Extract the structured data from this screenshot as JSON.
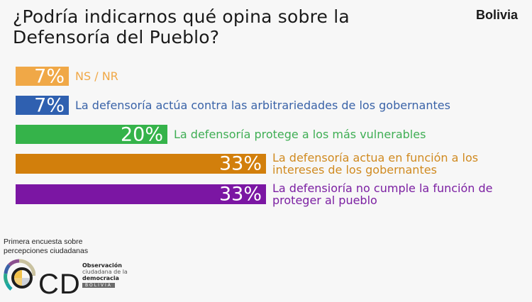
{
  "header": {
    "title_line1": "¿Podría indicarnos qué opina sobre la",
    "title_line2": "Defensoría del Pueblo?",
    "country": "Bolivia"
  },
  "chart_data": {
    "type": "bar",
    "orientation": "horizontal",
    "title": "¿Podría indicarnos qué opina sobre la Defensoría del Pueblo?",
    "xlabel": "",
    "ylabel": "",
    "xlim": [
      0,
      33
    ],
    "grid": false,
    "legend": "none",
    "categories": [
      "NS / NR",
      "La defensoría actúa contra las arbitrariedades de los gobernantes",
      "La defensoría protege a los más vulnerables",
      "La defensoría actua en función a los intereses de los gobernantes",
      "La defensioría no cumple la función de proteger al pueblo"
    ],
    "values": [
      7,
      7,
      20,
      33,
      33
    ],
    "value_labels": [
      "7%",
      "7%",
      "20%",
      "33%",
      "33%"
    ],
    "label_lines": [
      [
        "NS / NR"
      ],
      [
        "La defensoría actúa contra las arbitrariedades de los gobernantes"
      ],
      [
        "La defensoría protege a los más vulnerables"
      ],
      [
        "La defensoría actua en función a los",
        "intereses de los gobernantes"
      ],
      [
        "La defensioría no cumple la función de",
        "proteger al pueblo"
      ]
    ],
    "colors": [
      "#f0a847",
      "#2f60b0",
      "#35b34a",
      "#d27f0c",
      "#7b16a3"
    ],
    "label_colors": [
      "#f0a847",
      "#3a63a8",
      "#3fae54",
      "#d08a20",
      "#7b1fa2"
    ]
  },
  "footer": {
    "caption_line1": "Primera encuesta sobre",
    "caption_line2": "percepciones ciudadanas",
    "logo_letters": "OCD",
    "logo_line1": "Observación",
    "logo_line2": "ciudadana de la",
    "logo_line3": "democracia",
    "logo_line4": "BOLIVIA"
  }
}
